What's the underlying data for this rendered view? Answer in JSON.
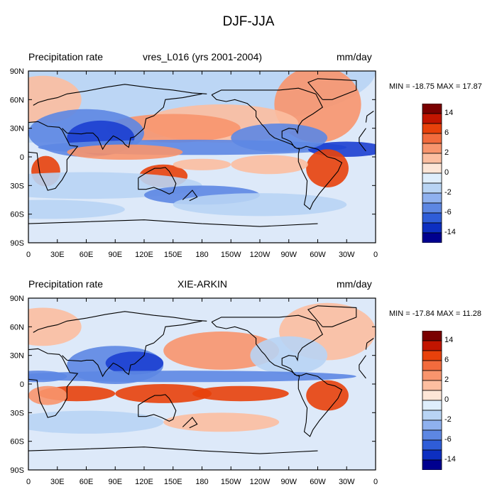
{
  "title": "DJF-JJA",
  "panels": [
    {
      "left_label": "Precipitation rate",
      "center_label": "vres_L016 (yrs 2001-2004)",
      "right_label": "mm/day",
      "min_max": "MIN = -18.75 MAX =  17.87"
    },
    {
      "left_label": "Precipitation rate",
      "center_label": "XIE-ARKIN",
      "right_label": "mm/day",
      "min_max": "MIN = -17.84 MAX =  11.28"
    }
  ],
  "lat_labels": [
    "90N",
    "60N",
    "30N",
    "0",
    "30S",
    "60S",
    "90S"
  ],
  "lon_labels": [
    "0",
    "30E",
    "60E",
    "90E",
    "120E",
    "150E",
    "180",
    "150W",
    "120W",
    "90W",
    "60W",
    "30W",
    "0"
  ],
  "colorbar": {
    "labels": [
      "14",
      "6",
      "2",
      "0",
      "-2",
      "-6",
      "-14"
    ],
    "colors": [
      "#7a0000",
      "#c21500",
      "#e8410b",
      "#f26b3d",
      "#f8956d",
      "#fcbea0",
      "#fde6d7",
      "#deeefc",
      "#b8d4f4",
      "#8fb1ef",
      "#5d87e3",
      "#2f5dd8",
      "#0d2fc1",
      "#00008f"
    ]
  },
  "colors": {
    "background_field": "#dde9f9",
    "wet_strong": "#e8410b",
    "wet_mid": "#f8956d",
    "wet_light": "#fcbea0",
    "dry_light": "#b8d4f4",
    "dry_mid": "#5d87e3",
    "dry_strong": "#1c3fd0"
  }
}
